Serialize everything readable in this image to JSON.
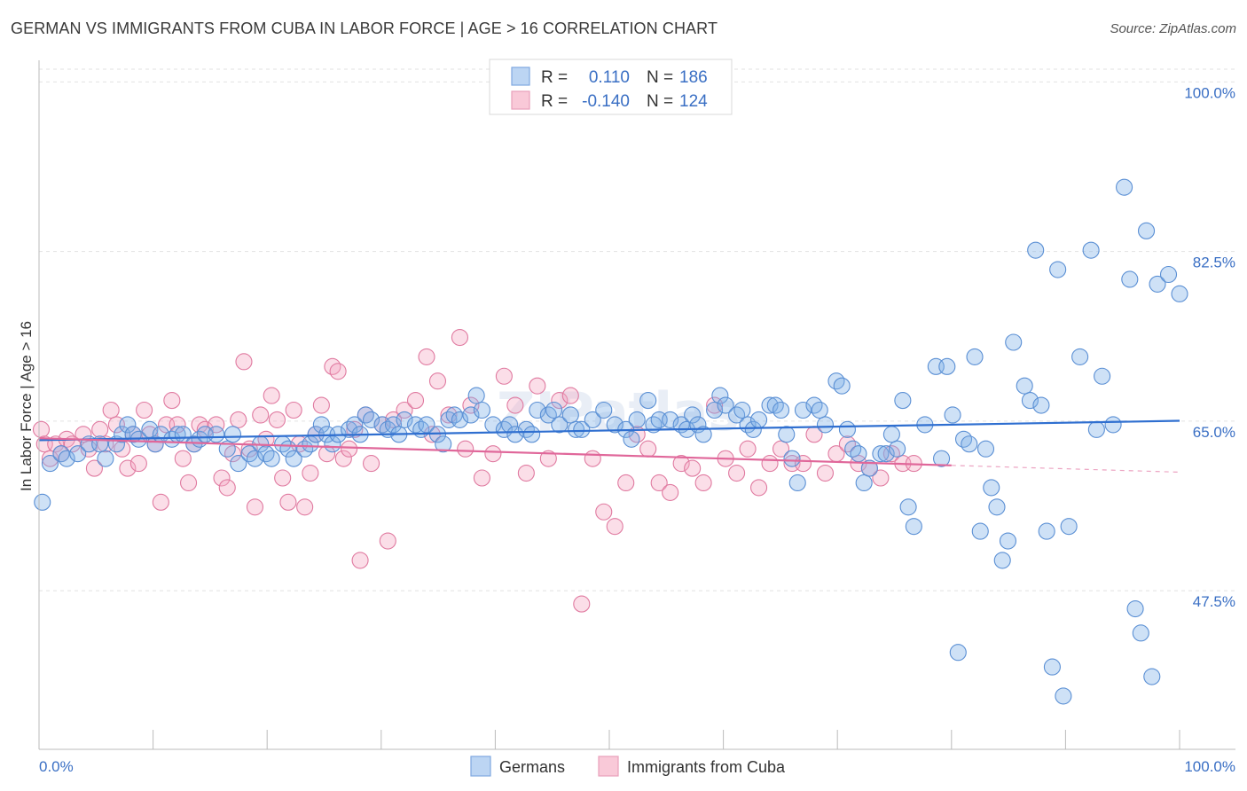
{
  "title": "GERMAN VS IMMIGRANTS FROM CUBA IN LABOR FORCE | AGE > 16 CORRELATION CHART",
  "source": "Source: ZipAtlas.com",
  "watermark": "ZIPatlas",
  "chart_data": {
    "type": "scatter",
    "ylabel": "In Labor Force | Age > 16",
    "xlim": [
      0,
      100
    ],
    "ylim": [
      32.5,
      102.5
    ],
    "x_tick_labels": {
      "left": "0.0%",
      "right": "100.0%"
    },
    "y_ticks": [
      {
        "value": 100.0,
        "label": "100.0%"
      },
      {
        "value": 82.5,
        "label": "82.5%"
      },
      {
        "value": 65.0,
        "label": "65.0%"
      },
      {
        "value": 47.5,
        "label": "47.5%"
      }
    ],
    "grid": true,
    "legend": {
      "placement": "top-center",
      "rows": [
        {
          "r_label": "R =",
          "r_value": "0.110",
          "n_label": "N =",
          "n_value": "186"
        },
        {
          "r_label": "R =",
          "r_value": "-0.140",
          "n_label": "N =",
          "n_value": "124"
        }
      ]
    },
    "series": [
      {
        "name": "Germans",
        "color": "#7fb0e8",
        "edge": "#5a8fd4",
        "trend": {
          "x0": 0,
          "y0": 64.4,
          "x1": 100,
          "y1": 66.4,
          "color": "#2f6fd0"
        },
        "points": [
          [
            0.3,
            58
          ],
          [
            1,
            62
          ],
          [
            2,
            63
          ],
          [
            2.5,
            62.5
          ],
          [
            3.5,
            63
          ],
          [
            4.5,
            64
          ],
          [
            5.5,
            64
          ],
          [
            6,
            62.5
          ],
          [
            7,
            64
          ],
          [
            7.5,
            65
          ],
          [
            8,
            66
          ],
          [
            8.5,
            65
          ],
          [
            9,
            64.5
          ],
          [
            10,
            65.5
          ],
          [
            10.5,
            64
          ],
          [
            11,
            65
          ],
          [
            12,
            64.5
          ],
          [
            12.5,
            65
          ],
          [
            13,
            65
          ],
          [
            14,
            64
          ],
          [
            14.5,
            64.5
          ],
          [
            15,
            65
          ],
          [
            16,
            65
          ],
          [
            17,
            63.5
          ],
          [
            17.5,
            65
          ],
          [
            18,
            62
          ],
          [
            19,
            63
          ],
          [
            19.5,
            62.5
          ],
          [
            20,
            64
          ],
          [
            20.5,
            63
          ],
          [
            21,
            62.5
          ],
          [
            22,
            64
          ],
          [
            22.5,
            63.5
          ],
          [
            23,
            62.5
          ],
          [
            24,
            63.5
          ],
          [
            24.5,
            64
          ],
          [
            25,
            65
          ],
          [
            25.5,
            66
          ],
          [
            26,
            65
          ],
          [
            26.5,
            64
          ],
          [
            27,
            65
          ],
          [
            28,
            65.5
          ],
          [
            28.5,
            66
          ],
          [
            29,
            65
          ],
          [
            29.5,
            67
          ],
          [
            30,
            66.5
          ],
          [
            31,
            66
          ],
          [
            31.5,
            65.5
          ],
          [
            32,
            66
          ],
          [
            32.5,
            65
          ],
          [
            33,
            66.5
          ],
          [
            34,
            66
          ],
          [
            34.5,
            65.5
          ],
          [
            35,
            66
          ],
          [
            36,
            65
          ],
          [
            36.5,
            64
          ],
          [
            37,
            66.5
          ],
          [
            37.5,
            67
          ],
          [
            38,
            66.5
          ],
          [
            39,
            67
          ],
          [
            39.5,
            69
          ],
          [
            40,
            67.5
          ],
          [
            41,
            66
          ],
          [
            42,
            65.5
          ],
          [
            42.5,
            66
          ],
          [
            43,
            65
          ],
          [
            44,
            65.5
          ],
          [
            44.5,
            65
          ],
          [
            45,
            67.5
          ],
          [
            46,
            67
          ],
          [
            46.5,
            67.5
          ],
          [
            47,
            66
          ],
          [
            48,
            67
          ],
          [
            48.5,
            65.5
          ],
          [
            49,
            65.5
          ],
          [
            50,
            66.5
          ],
          [
            51,
            67.5
          ],
          [
            52,
            66
          ],
          [
            53,
            65.5
          ],
          [
            53.5,
            64.5
          ],
          [
            54,
            66.5
          ],
          [
            55,
            68.5
          ],
          [
            55.5,
            66
          ],
          [
            56,
            66.5
          ],
          [
            57,
            66.5
          ],
          [
            58,
            66
          ],
          [
            58.5,
            65.5
          ],
          [
            59,
            67
          ],
          [
            59.5,
            66
          ],
          [
            60,
            65
          ],
          [
            61,
            67.5
          ],
          [
            61.5,
            69
          ],
          [
            62,
            68
          ],
          [
            63,
            67
          ],
          [
            63.5,
            67.5
          ],
          [
            64,
            66
          ],
          [
            64.5,
            65.5
          ],
          [
            65,
            66.5
          ],
          [
            66,
            68
          ],
          [
            66.5,
            68
          ],
          [
            67,
            67.5
          ],
          [
            67.5,
            65
          ],
          [
            68,
            62.5
          ],
          [
            68.5,
            60
          ],
          [
            69,
            67.5
          ],
          [
            70,
            68
          ],
          [
            70.5,
            67.5
          ],
          [
            71,
            66
          ],
          [
            72,
            70.5
          ],
          [
            72.5,
            70
          ],
          [
            73,
            65.5
          ],
          [
            73.5,
            63.5
          ],
          [
            74,
            63
          ],
          [
            74.5,
            60
          ],
          [
            75,
            61.5
          ],
          [
            76,
            63
          ],
          [
            76.5,
            63
          ],
          [
            77,
            65
          ],
          [
            77.5,
            63.5
          ],
          [
            78,
            68.5
          ],
          [
            78.5,
            57.5
          ],
          [
            79,
            55.5
          ],
          [
            80,
            66
          ],
          [
            81,
            72
          ],
          [
            81.5,
            62.5
          ],
          [
            82,
            72
          ],
          [
            82.5,
            67
          ],
          [
            83,
            42.5
          ],
          [
            83.5,
            64.5
          ],
          [
            84,
            64
          ],
          [
            84.5,
            73
          ],
          [
            85,
            55
          ],
          [
            85.5,
            63.5
          ],
          [
            86,
            59.5
          ],
          [
            86.5,
            57.5
          ],
          [
            87,
            52
          ],
          [
            87.5,
            54
          ],
          [
            88,
            74.5
          ],
          [
            89,
            70
          ],
          [
            89.5,
            68.5
          ],
          [
            90,
            84
          ],
          [
            90.5,
            68
          ],
          [
            91,
            55
          ],
          [
            91.5,
            41
          ],
          [
            92,
            82
          ],
          [
            92.5,
            38
          ],
          [
            93,
            55.5
          ],
          [
            94,
            73
          ],
          [
            95,
            84
          ],
          [
            95.5,
            65.5
          ],
          [
            96,
            71
          ],
          [
            97,
            66
          ],
          [
            98,
            90.5
          ],
          [
            98.5,
            81
          ],
          [
            99,
            47
          ],
          [
            99.5,
            44.5
          ],
          [
            100,
            86
          ],
          [
            100.5,
            40
          ],
          [
            101,
            80.5
          ],
          [
            102,
            81.5
          ],
          [
            103,
            79.5
          ]
        ]
      },
      {
        "name": "Immigrants from Cuba",
        "color": "#f4a8c2",
        "edge": "#e07aa0",
        "trend": {
          "x0": 0,
          "y0": 64.6,
          "x1": 80,
          "y1": 61.8,
          "color": "#e0679a",
          "dash_to": 100,
          "dash_y": 61.1
        },
        "points": [
          [
            0.2,
            65.5
          ],
          [
            0.5,
            64
          ],
          [
            1,
            62.5
          ],
          [
            1.5,
            64
          ],
          [
            2,
            63
          ],
          [
            2.5,
            64.5
          ],
          [
            3,
            64
          ],
          [
            4,
            65
          ],
          [
            4.5,
            63.5
          ],
          [
            5,
            61.5
          ],
          [
            5.5,
            65.5
          ],
          [
            6,
            64
          ],
          [
            6.5,
            67.5
          ],
          [
            7,
            66
          ],
          [
            7.5,
            63.5
          ],
          [
            8,
            61.5
          ],
          [
            8.5,
            65
          ],
          [
            9,
            62
          ],
          [
            9.5,
            67.5
          ],
          [
            10,
            65
          ],
          [
            10.5,
            64
          ],
          [
            11,
            58
          ],
          [
            11.5,
            66
          ],
          [
            12,
            68.5
          ],
          [
            12.5,
            66
          ],
          [
            13,
            62.5
          ],
          [
            13.5,
            60
          ],
          [
            14,
            64
          ],
          [
            14.5,
            66
          ],
          [
            15,
            65.5
          ],
          [
            16,
            66
          ],
          [
            16.5,
            60.5
          ],
          [
            17,
            59.5
          ],
          [
            17.5,
            63
          ],
          [
            18,
            66.5
          ],
          [
            18.5,
            72.5
          ],
          [
            19,
            63.5
          ],
          [
            19.5,
            57.5
          ],
          [
            20,
            67
          ],
          [
            20.5,
            64.5
          ],
          [
            21,
            69
          ],
          [
            21.5,
            66.5
          ],
          [
            22,
            60.5
          ],
          [
            22.5,
            58
          ],
          [
            23,
            67.5
          ],
          [
            23.5,
            64
          ],
          [
            24,
            57.5
          ],
          [
            24.5,
            61
          ],
          [
            25,
            65
          ],
          [
            25.5,
            68
          ],
          [
            26,
            63
          ],
          [
            26.5,
            72
          ],
          [
            27,
            71.5
          ],
          [
            27.5,
            62.5
          ],
          [
            28,
            63.5
          ],
          [
            28.5,
            65.5
          ],
          [
            29,
            52
          ],
          [
            29.5,
            67
          ],
          [
            30,
            62
          ],
          [
            31,
            66
          ],
          [
            31.5,
            54
          ],
          [
            32,
            66.5
          ],
          [
            33,
            67.5
          ],
          [
            34,
            68.5
          ],
          [
            35,
            73
          ],
          [
            35.5,
            65
          ],
          [
            36,
            70.5
          ],
          [
            37,
            67
          ],
          [
            38,
            75
          ],
          [
            38.5,
            63.5
          ],
          [
            39,
            68
          ],
          [
            40,
            60.5
          ],
          [
            41,
            63
          ],
          [
            42,
            71
          ],
          [
            43,
            68
          ],
          [
            44,
            61
          ],
          [
            45,
            70
          ],
          [
            46,
            62.5
          ],
          [
            47,
            68.5
          ],
          [
            48,
            69
          ],
          [
            49,
            47.5
          ],
          [
            50,
            62.5
          ],
          [
            51,
            57
          ],
          [
            52,
            55.5
          ],
          [
            53,
            60
          ],
          [
            54,
            65
          ],
          [
            55,
            63.5
          ],
          [
            56,
            60
          ],
          [
            57,
            59
          ],
          [
            58,
            62
          ],
          [
            59,
            61.5
          ],
          [
            60,
            60
          ],
          [
            61,
            68
          ],
          [
            62,
            62.5
          ],
          [
            63,
            61
          ],
          [
            64,
            63.5
          ],
          [
            65,
            59.5
          ],
          [
            66,
            62
          ],
          [
            67,
            63.5
          ],
          [
            68,
            62
          ],
          [
            69,
            62
          ],
          [
            70,
            65
          ],
          [
            71,
            61
          ],
          [
            72,
            63
          ],
          [
            73,
            64
          ],
          [
            74,
            62
          ],
          [
            75,
            61.5
          ],
          [
            76,
            60.5
          ],
          [
            77,
            63
          ],
          [
            78,
            62
          ],
          [
            79,
            62
          ]
        ]
      }
    ]
  },
  "bottom_legend": [
    {
      "label": "Germans"
    },
    {
      "label": "Immigrants from Cuba"
    }
  ]
}
